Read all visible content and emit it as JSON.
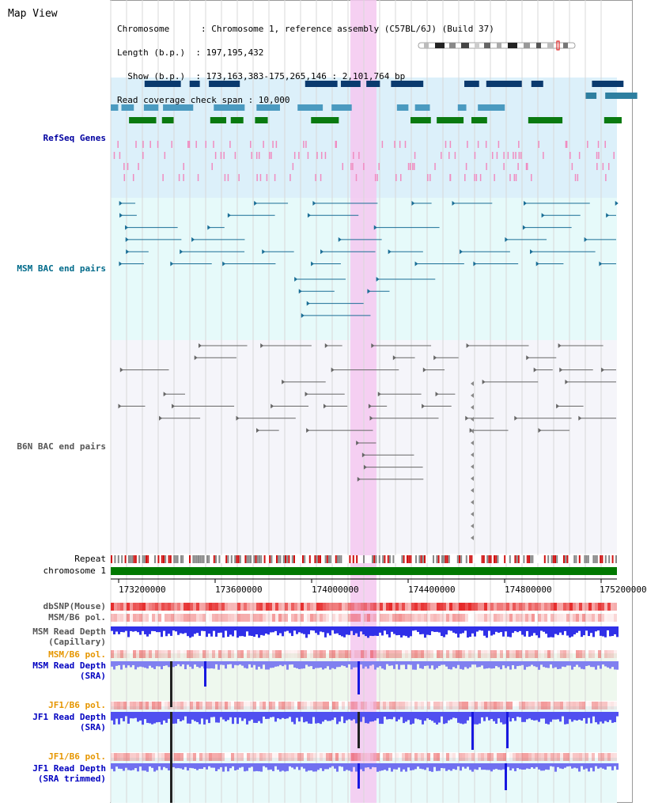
{
  "header": {
    "title": "Map View",
    "lines": [
      "Chromosome      : Chromosome 1, reference assembly (C57BL/6J) (Build 37)",
      "Length (b.p.)  : 197,195,432",
      "  Show (b.p.)  : 173,163,383-175,265,146 : 2,101,764 bp",
      "Read coverage check span : 10,000"
    ]
  },
  "tracks": {
    "refseq": "RefSeq Genes",
    "msm_bac": "MSM BAC end pairs",
    "b6n_bac": "B6N BAC end pairs",
    "repeat": "Repeat",
    "chrom": "chromosome 1",
    "dbsnp": "dbSNP(Mouse)",
    "msm_pol": "MSM/B6 pol.",
    "msm_depth_cap_1": "MSM Read Depth",
    "msm_depth_cap_2": "(Capillary)",
    "msm_pol2": "MSM/B6 pol.",
    "msm_depth_sra_1": "MSM Read Depth",
    "msm_depth_sra_2": "(SRA)",
    "jf1_pol": "JF1/B6 pol.",
    "jf1_depth_1": "JF1 Read Depth",
    "jf1_depth_2": "(SRA)",
    "jf1_pol2": "JF1/B6 pol.",
    "jf1_trim_1": "JF1 Read Depth",
    "jf1_trim_2": "(SRA trimmed)"
  },
  "axis": {
    "ticks": [
      "173200000",
      "173600000",
      "174000000",
      "174400000",
      "174800000",
      "175200000"
    ]
  },
  "colors": {
    "refseq_bg": "#dcf0fa",
    "msm_bg": "#e6fafa",
    "b6n_bg": "#f5f5fa",
    "highlight": "#f5c8f0",
    "chrom_bar": "#007800",
    "depth_blue": "#0000ff"
  }
}
